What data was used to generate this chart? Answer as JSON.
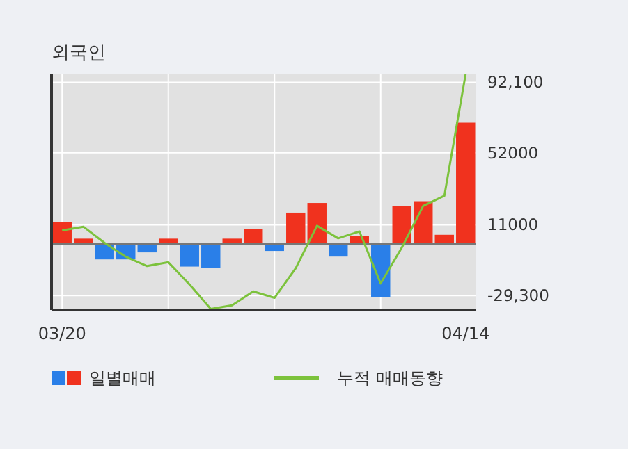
{
  "chart_data": {
    "type": "bar",
    "title": "외국인",
    "categories": [
      "03/20",
      null,
      null,
      null,
      null,
      null,
      null,
      null,
      null,
      null,
      null,
      null,
      null,
      null,
      null,
      null,
      null,
      null,
      null,
      "04/14"
    ],
    "series": [
      {
        "name": "일별매매",
        "colors": [
          "#f0321e",
          "#f0321e",
          "#2a7fe8",
          "#2a7fe8",
          "#2a7fe8",
          "#f0321e",
          "#2a7fe8",
          "#2a7fe8",
          "#f0321e",
          "#f0321e",
          "#2a7fe8",
          "#f0321e",
          "#f0321e",
          "#2a7fe8",
          "#f0321e",
          "#2a7fe8",
          "#f0321e",
          "#f0321e",
          "#f0321e",
          "#f0321e"
        ],
        "values": [
          12400,
          3100,
          -8700,
          -8700,
          -4700,
          3100,
          -12800,
          -13600,
          3100,
          8400,
          -3900,
          17900,
          23400,
          -7100,
          4700,
          -30200,
          21800,
          24400,
          5300,
          69100
        ]
      },
      {
        "name": "누적 매매동향",
        "type": "line",
        "color": "#7cc23c",
        "values": [
          7800,
          9900,
          700,
          -7200,
          -12500,
          -10300,
          -23000,
          -36900,
          -34800,
          -26900,
          -30600,
          -13700,
          10400,
          3300,
          7200,
          -22400,
          -1900,
          21700,
          27500,
          96600
        ]
      }
    ],
    "ylim": [
      -37500,
      97000
    ],
    "yticks": [
      {
        "value": 92100,
        "label": "92,100"
      },
      52000,
      11000,
      {
        "value": -29300,
        "label": "-29,300"
      }
    ],
    "grid": true,
    "legend": "bottom"
  }
}
